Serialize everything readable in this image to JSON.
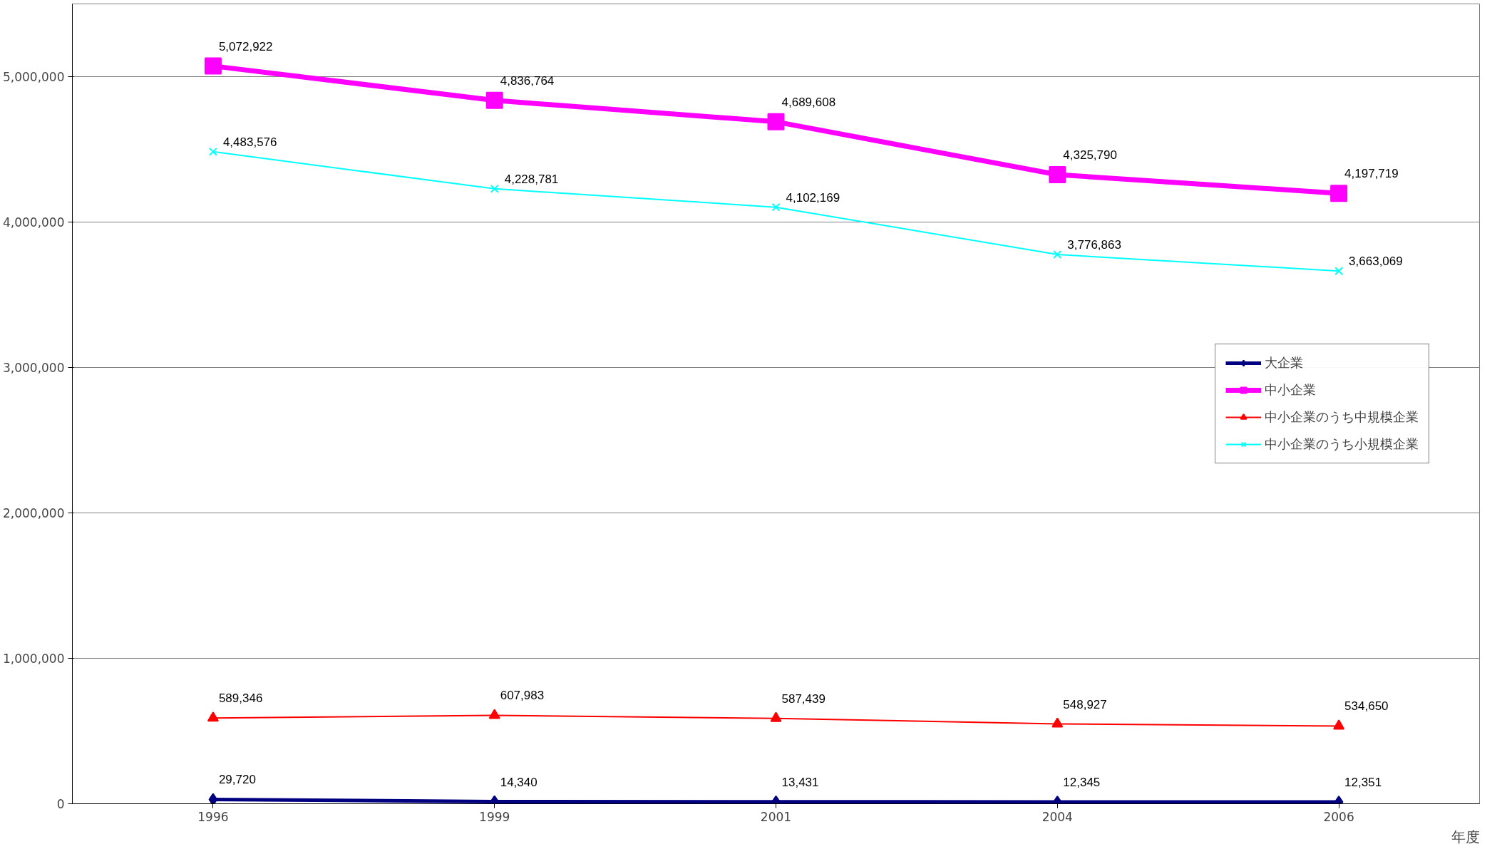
{
  "chart_data": {
    "type": "line",
    "xlabel": "年度",
    "categories": [
      "1996",
      "1999",
      "2001",
      "2004",
      "2006"
    ],
    "series": [
      {
        "name": "大企業",
        "color": "#000080",
        "marker": "diamond",
        "values": [
          29720,
          14340,
          13431,
          12345,
          12351
        ],
        "value_labels": [
          "29,720",
          "14,340",
          "13,431",
          "12,345",
          "12,351"
        ]
      },
      {
        "name": "中小企業",
        "color": "#ff00ff",
        "marker": "square",
        "values": [
          5072922,
          4836764,
          4689608,
          4325790,
          4197719
        ],
        "value_labels": [
          "5,072,922",
          "4,836,764",
          "4,689,608",
          "4,325,790",
          "4,197,719"
        ]
      },
      {
        "name": "中小企業のうち中規模企業",
        "color": "#ff0000",
        "marker": "triangle",
        "values": [
          589346,
          607983,
          587439,
          548927,
          534650
        ],
        "value_labels": [
          "589,346",
          "607,983",
          "587,439",
          "548,927",
          "534,650"
        ]
      },
      {
        "name": "中小企業のうち小規模企業",
        "color": "#00ffff",
        "marker": "cross",
        "values": [
          4483576,
          4228781,
          4102169,
          3776863,
          3663069
        ],
        "value_labels": [
          "4,483,576",
          "4,228,781",
          "4,102,169",
          "3,776,863",
          "3,663,069"
        ]
      }
    ],
    "ylim": [
      0,
      5500000
    ],
    "yticks": [
      0,
      {
        "value": 1000000,
        "label": "1,000,000"
      },
      {
        "value": 2000000,
        "label": "2,000,000"
      },
      {
        "value": 3000000,
        "label": "3,000,000"
      },
      {
        "value": 4000000,
        "label": "4,000,000"
      },
      {
        "value": 5000000,
        "label": "5,000,000"
      }
    ],
    "grid": "y",
    "legend": "right"
  }
}
